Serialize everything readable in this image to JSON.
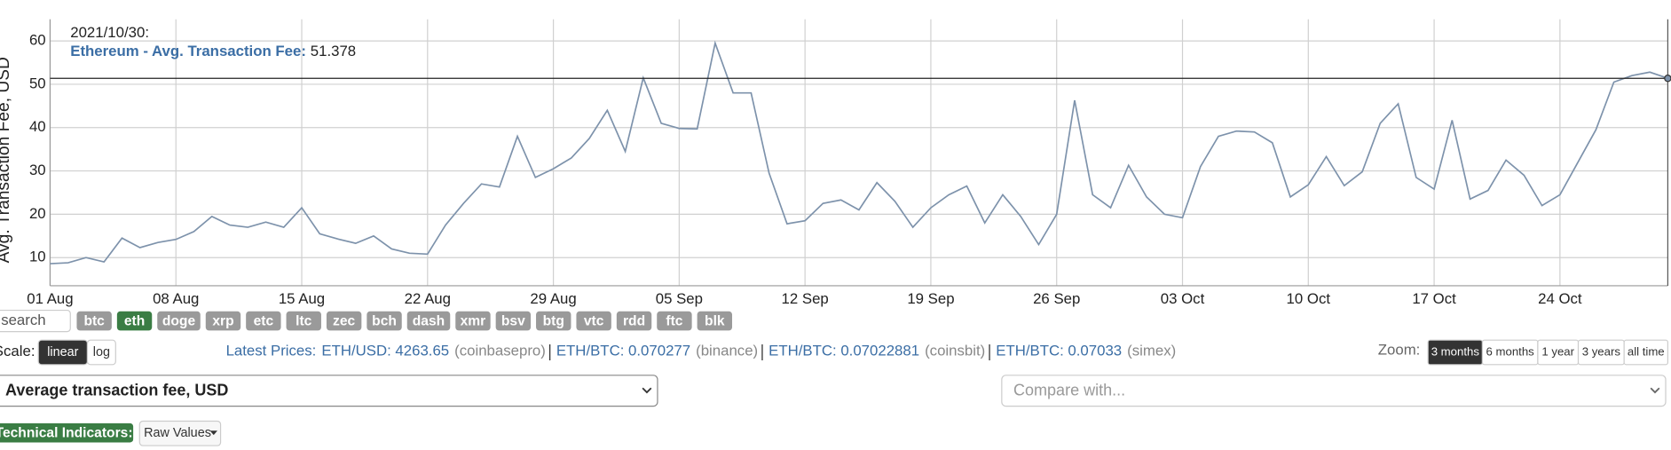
{
  "chart_data": {
    "type": "line",
    "y_label": "Avg. Transaction Fee, USD",
    "x": [
      "2021-08-01",
      "2021-08-02",
      "2021-08-03",
      "2021-08-04",
      "2021-08-05",
      "2021-08-06",
      "2021-08-07",
      "2021-08-08",
      "2021-08-09",
      "2021-08-10",
      "2021-08-11",
      "2021-08-12",
      "2021-08-13",
      "2021-08-14",
      "2021-08-15",
      "2021-08-16",
      "2021-08-17",
      "2021-08-18",
      "2021-08-19",
      "2021-08-20",
      "2021-08-21",
      "2021-08-22",
      "2021-08-23",
      "2021-08-24",
      "2021-08-25",
      "2021-08-26",
      "2021-08-27",
      "2021-08-28",
      "2021-08-29",
      "2021-08-30",
      "2021-08-31",
      "2021-09-01",
      "2021-09-02",
      "2021-09-03",
      "2021-09-04",
      "2021-09-05",
      "2021-09-06",
      "2021-09-07",
      "2021-09-08",
      "2021-09-09",
      "2021-09-10",
      "2021-09-11",
      "2021-09-12",
      "2021-09-13",
      "2021-09-14",
      "2021-09-15",
      "2021-09-16",
      "2021-09-17",
      "2021-09-18",
      "2021-09-19",
      "2021-09-20",
      "2021-09-21",
      "2021-09-22",
      "2021-09-23",
      "2021-09-24",
      "2021-09-25",
      "2021-09-26",
      "2021-09-27",
      "2021-09-28",
      "2021-09-29",
      "2021-09-30",
      "2021-10-01",
      "2021-10-02",
      "2021-10-03",
      "2021-10-04",
      "2021-10-05",
      "2021-10-06",
      "2021-10-07",
      "2021-10-08",
      "2021-10-09",
      "2021-10-10",
      "2021-10-11",
      "2021-10-12",
      "2021-10-13",
      "2021-10-14",
      "2021-10-15",
      "2021-10-16",
      "2021-10-17",
      "2021-10-18",
      "2021-10-19",
      "2021-10-20",
      "2021-10-21",
      "2021-10-22",
      "2021-10-23",
      "2021-10-24",
      "2021-10-25",
      "2021-10-26",
      "2021-10-27",
      "2021-10-28",
      "2021-10-29",
      "2021-10-30"
    ],
    "series": [
      {
        "color": "#7d92ab",
        "values": [
          8.6,
          8.8,
          10,
          9,
          14.5,
          12.3,
          13.5,
          14.2,
          16,
          19.5,
          17.5,
          17,
          18.2,
          17,
          21.5,
          15.5,
          14.3,
          13.3,
          15,
          12,
          11,
          10.8,
          17.5,
          22.5,
          27,
          26.3,
          38,
          28.5,
          30.5,
          33,
          37.5,
          44,
          34.5,
          51.5,
          41,
          39.8,
          39.7,
          59.5,
          48,
          48,
          29.5,
          17.8,
          18.5,
          22.5,
          23.3,
          21,
          27.3,
          23,
          17,
          21.5,
          24.5,
          26.5,
          18,
          24.5,
          19.5,
          13,
          20,
          46.3,
          24.5,
          21.5,
          31.3,
          24,
          20,
          19.2,
          31,
          38,
          39.2,
          39,
          36.5,
          24,
          26.8,
          33.3,
          26.6,
          29.8,
          41,
          45.5,
          28.5,
          25.8,
          41.7,
          23.5,
          25.5,
          32.5,
          29,
          22,
          24.5,
          32,
          39.5,
          50.5,
          52,
          52.8,
          51.378
        ]
      }
    ],
    "xlim": [
      "2021-08-01",
      "2021-10-30"
    ],
    "xticks": [
      {
        "value": "2021-08-01",
        "label": "01 Aug"
      },
      {
        "value": "2021-08-08",
        "label": "08 Aug"
      },
      {
        "value": "2021-08-15",
        "label": "15 Aug"
      },
      {
        "value": "2021-08-22",
        "label": "22 Aug"
      },
      {
        "value": "2021-08-29",
        "label": "29 Aug"
      },
      {
        "value": "2021-09-05",
        "label": "05 Sep"
      },
      {
        "value": "2021-09-12",
        "label": "12 Sep"
      },
      {
        "value": "2021-09-19",
        "label": "19 Sep"
      },
      {
        "value": "2021-09-26",
        "label": "26 Sep"
      },
      {
        "value": "2021-10-03",
        "label": "03 Oct"
      },
      {
        "value": "2021-10-10",
        "label": "10 Oct"
      },
      {
        "value": "2021-10-17",
        "label": "17 Oct"
      },
      {
        "value": "2021-10-24",
        "label": "24 Oct"
      }
    ],
    "ylim": [
      3.5,
      65
    ],
    "yticks": [
      10,
      20,
      30,
      40,
      50,
      60
    ],
    "grid": true,
    "tooltip": {
      "date": "2021/10/30:",
      "label": "Ethereum - Avg. Transaction Fee:",
      "value": 51.378
    }
  },
  "ui": {
    "search_placeholder": "search",
    "coins": [
      "btc",
      "eth",
      "doge",
      "xrp",
      "etc",
      "ltc",
      "zec",
      "bch",
      "dash",
      "xmr",
      "bsv",
      "btg",
      "vtc",
      "rdd",
      "ftc",
      "blk"
    ],
    "active_coin": "eth",
    "scale_label": "Scale:",
    "scales": [
      "linear",
      "log"
    ],
    "active_scale": "linear",
    "latest_prices_label": "Latest Prices:",
    "prices": [
      {
        "pair": "ETH/USD: 4263.65",
        "exchange": "(coinbasepro)"
      },
      {
        "pair": "ETH/BTC: 0.070277",
        "exchange": "(binance)"
      },
      {
        "pair": "ETH/BTC: 0.07022881",
        "exchange": "(coinsbit)"
      },
      {
        "pair": "ETH/BTC: 0.07033",
        "exchange": "(simex)"
      }
    ],
    "zoom_label": "Zoom:",
    "zoom": [
      "3 months",
      "6 months",
      "1 year",
      "3 years",
      "all time"
    ],
    "active_zoom": "3 months",
    "metric_select": "Average transaction fee, USD",
    "compare_placeholder": "Compare with...",
    "indicators_label": "Technical Indicators:",
    "indicators_button": "Raw Values"
  }
}
